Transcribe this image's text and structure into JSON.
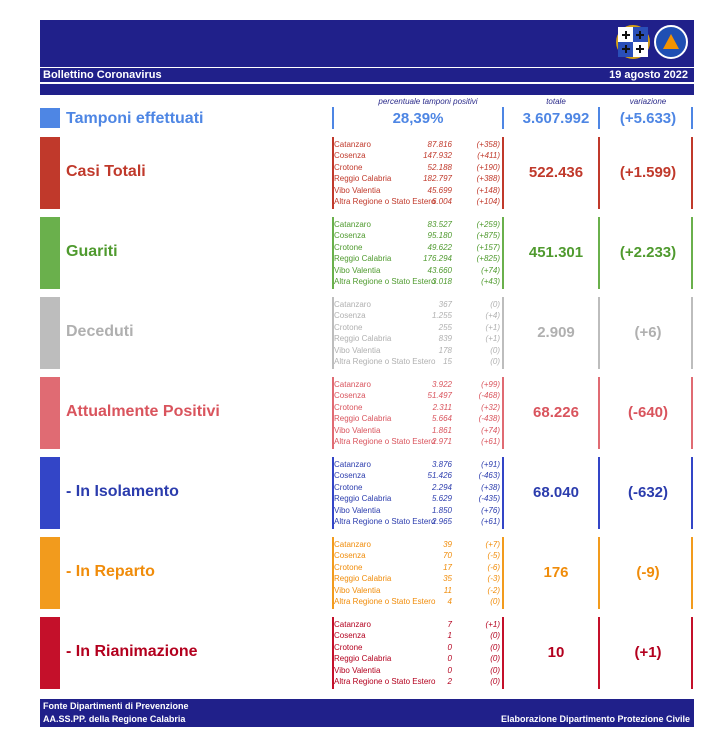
{
  "header": {
    "title": "Bollettino Coronavirus",
    "date": "19 agosto 2022",
    "col_percent": "percentuale tamponi positivi",
    "col_total": "totale",
    "col_variation": "variazione"
  },
  "tamponi": {
    "label": "Tamponi effettuati",
    "percent": "28,39%",
    "total": "3.607.992",
    "variation": "(+5.633)",
    "color": "#4e86e4"
  },
  "sections": [
    {
      "id": "casi",
      "label": "Casi Totali",
      "color": "#c0392b",
      "text_color": "#c0392b",
      "total": "522.436",
      "variation": "(+1.599)",
      "rows": [
        {
          "name": "Catanzaro",
          "value": "87.816",
          "delta": "(+358)"
        },
        {
          "name": "Cosenza",
          "value": "147.932",
          "delta": "(+411)"
        },
        {
          "name": "Crotone",
          "value": "52.188",
          "delta": "(+190)"
        },
        {
          "name": "Reggio Calabria",
          "value": "182.797",
          "delta": "(+388)"
        },
        {
          "name": "Vibo Valentia",
          "value": "45.699",
          "delta": "(+148)"
        },
        {
          "name": "Altra Regione o Stato Estero",
          "value": "6.004",
          "delta": "(+104)"
        }
      ]
    },
    {
      "id": "guariti",
      "label": "Guariti",
      "color": "#6ab04c",
      "text_color": "#4f9a2e",
      "total": "451.301",
      "variation": "(+2.233)",
      "rows": [
        {
          "name": "Catanzaro",
          "value": "83.527",
          "delta": "(+259)"
        },
        {
          "name": "Cosenza",
          "value": "95.180",
          "delta": "(+875)"
        },
        {
          "name": "Crotone",
          "value": "49.622",
          "delta": "(+157)"
        },
        {
          "name": "Reggio Calabria",
          "value": "176.294",
          "delta": "(+825)"
        },
        {
          "name": "Vibo Valentia",
          "value": "43.660",
          "delta": "(+74)"
        },
        {
          "name": "Altra Regione o Stato Estero",
          "value": "3.018",
          "delta": "(+43)"
        }
      ]
    },
    {
      "id": "deceduti",
      "label": "Deceduti",
      "color": "#bdbdbd",
      "text_color": "#b0b0b0",
      "total": "2.909",
      "variation": "(+6)",
      "rows": [
        {
          "name": "Catanzaro",
          "value": "367",
          "delta": "(0)"
        },
        {
          "name": "Cosenza",
          "value": "1.255",
          "delta": "(+4)"
        },
        {
          "name": "Crotone",
          "value": "255",
          "delta": "(+1)"
        },
        {
          "name": "Reggio Calabria",
          "value": "839",
          "delta": "(+1)"
        },
        {
          "name": "Vibo Valentia",
          "value": "178",
          "delta": "(0)"
        },
        {
          "name": "Altra Regione o Stato Estero",
          "value": "15",
          "delta": "(0)"
        }
      ]
    },
    {
      "id": "positivi",
      "label": "Attualmente Positivi",
      "color": "#e06b73",
      "text_color": "#d9545d",
      "total": "68.226",
      "variation": "(-640)",
      "rows": [
        {
          "name": "Catanzaro",
          "value": "3.922",
          "delta": "(+99)"
        },
        {
          "name": "Cosenza",
          "value": "51.497",
          "delta": "(-468)"
        },
        {
          "name": "Crotone",
          "value": "2.311",
          "delta": "(+32)"
        },
        {
          "name": "Reggio Calabria",
          "value": "5.664",
          "delta": "(-438)"
        },
        {
          "name": "Vibo Valentia",
          "value": "1.861",
          "delta": "(+74)"
        },
        {
          "name": "Altra Regione o Stato Estero",
          "value": "2.971",
          "delta": "(+61)"
        }
      ]
    },
    {
      "id": "isolamento",
      "label": "- In Isolamento",
      "color": "#3345c7",
      "text_color": "#2b3cad",
      "total": "68.040",
      "variation": "(-632)",
      "rows": [
        {
          "name": "Catanzaro",
          "value": "3.876",
          "delta": "(+91)"
        },
        {
          "name": "Cosenza",
          "value": "51.426",
          "delta": "(-463)"
        },
        {
          "name": "Crotone",
          "value": "2.294",
          "delta": "(+38)"
        },
        {
          "name": "Reggio Calabria",
          "value": "5.629",
          "delta": "(-435)"
        },
        {
          "name": "Vibo Valentia",
          "value": "1.850",
          "delta": "(+76)"
        },
        {
          "name": "Altra Regione o Stato Estero",
          "value": "2.965",
          "delta": "(+61)"
        }
      ]
    },
    {
      "id": "reparto",
      "label": "- In Reparto",
      "color": "#f29b1d",
      "text_color": "#f08c0a",
      "total": "176",
      "variation": "(-9)",
      "rows": [
        {
          "name": "Catanzaro",
          "value": "39",
          "delta": "(+7)"
        },
        {
          "name": "Cosenza",
          "value": "70",
          "delta": "(-5)"
        },
        {
          "name": "Crotone",
          "value": "17",
          "delta": "(-6)"
        },
        {
          "name": "Reggio Calabria",
          "value": "35",
          "delta": "(-3)"
        },
        {
          "name": "Vibo Valentia",
          "value": "11",
          "delta": "(-2)"
        },
        {
          "name": "Altra Regione o Stato Estero",
          "value": "4",
          "delta": "(0)"
        }
      ]
    },
    {
      "id": "rianimazione",
      "label": "- In Rianimazione",
      "color": "#c4102a",
      "text_color": "#b3001e",
      "total": "10",
      "variation": "(+1)",
      "rows": [
        {
          "name": "Catanzaro",
          "value": "7",
          "delta": "(+1)"
        },
        {
          "name": "Cosenza",
          "value": "1",
          "delta": "(0)"
        },
        {
          "name": "Crotone",
          "value": "0",
          "delta": "(0)"
        },
        {
          "name": "Reggio Calabria",
          "value": "0",
          "delta": "(0)"
        },
        {
          "name": "Vibo Valentia",
          "value": "0",
          "delta": "(0)"
        },
        {
          "name": "Altra Regione o Stato Estero",
          "value": "2",
          "delta": "(0)"
        }
      ]
    }
  ],
  "footer": {
    "line1": "Fonte Dipartimenti di Prevenzione",
    "line2": "AA.SS.PP.  della Regione Calabria",
    "credit": "Elaborazione Dipartimento Protezione Civile"
  }
}
